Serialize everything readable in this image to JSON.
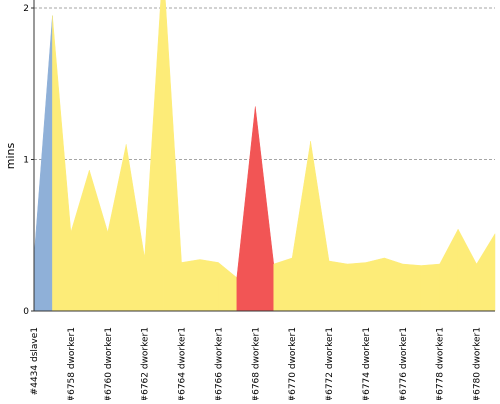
{
  "chart_data": {
    "type": "area",
    "ylabel": "mins",
    "xlabel": "",
    "ylim": [
      0,
      2
    ],
    "yticks": [
      {
        "value": 0,
        "label": "0"
      },
      {
        "value": 1,
        "label": "1"
      },
      {
        "value": 2,
        "label": "2"
      }
    ],
    "grid": "horizontal dashed",
    "categories": [
      "#4434 dslave1",
      "",
      "#6758 dworker1",
      "",
      "#6760 dworker1",
      "",
      "#6762 dworker1",
      "",
      "#6764 dworker1",
      "",
      "#6766 dworker1",
      "",
      "#6768 dworker1",
      "",
      "#6770 dworker1",
      "",
      "#6772 dworker1",
      "",
      "#6774 dworker1",
      "",
      "#6776 dworker1",
      "",
      "#6778 dworker1",
      "",
      "#6780 dworker1",
      ""
    ],
    "values": [
      0.35,
      1.95,
      0.52,
      0.93,
      0.52,
      1.1,
      0.35,
      2.3,
      0.32,
      0.34,
      0.32,
      0.22,
      1.35,
      0.31,
      0.35,
      1.12,
      0.33,
      0.31,
      0.32,
      0.35,
      0.31,
      0.3,
      0.31,
      0.54,
      0.31,
      0.51
    ],
    "colors": {
      "default": "#fdec78",
      "first": "#8fb0d8",
      "highlight": "#f25555"
    },
    "highlight_range": [
      11,
      13
    ]
  }
}
